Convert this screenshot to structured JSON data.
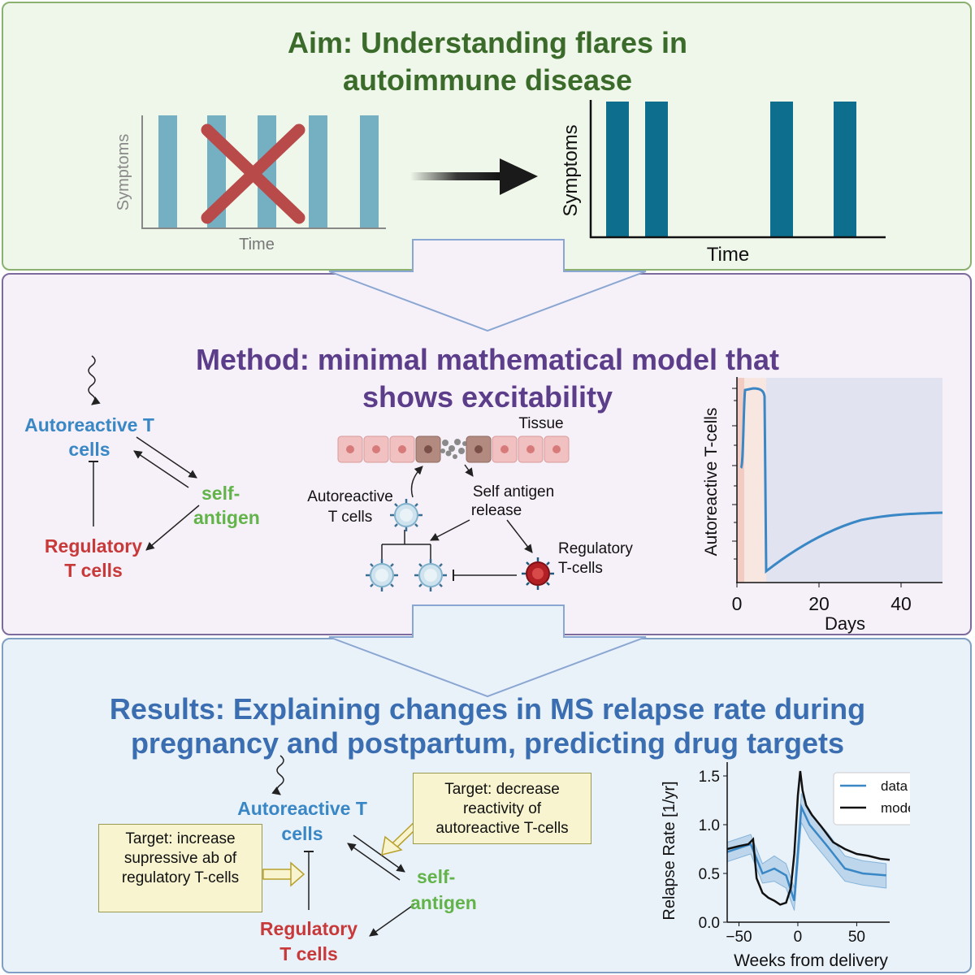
{
  "aim": {
    "title_line1": "Aim: Understanding flares in",
    "title_line2": "autoimmune disease",
    "chart_left": {
      "ylabel": "Symptoms",
      "xlabel": "Time"
    },
    "chart_right": {
      "ylabel": "Symptoms",
      "xlabel": "Time"
    }
  },
  "method": {
    "title_line1": "Method: minimal mathematical model that",
    "title_line2": "shows excitability",
    "network": {
      "autoreactive_line1": "Autoreactive T",
      "autoreactive_line2": "cells",
      "self_antigen_line1": "self-",
      "self_antigen_line2": "antigen",
      "regulatory_line1": "Regulatory",
      "regulatory_line2": "T cells"
    },
    "illustration": {
      "tissue": "Tissue",
      "autoreactive_line1": "Autoreactive",
      "autoreactive_line2": "T cells",
      "self_antigen_line1": "Self antigen",
      "self_antigen_line2": "release",
      "regulatory_line1": "Regulatory",
      "regulatory_line2": "T-cells"
    },
    "plot": {
      "ylabel": "Autoreactive T-cells",
      "xlabel": "Days",
      "xticks": [
        "0",
        "20",
        "40"
      ]
    }
  },
  "results": {
    "title_line1": "Results: Explaining changes in MS relapse rate during",
    "title_line2": "pregnancy and postpartum, predicting drug targets",
    "network": {
      "autoreactive_line1": "Autoreactive T",
      "autoreactive_line2": "cells",
      "self_antigen_line1": "self-",
      "self_antigen_line2": "antigen",
      "regulatory_line1": "Regulatory",
      "regulatory_line2": "T cells"
    },
    "target_left": {
      "line1": "Target: increase",
      "line2": "supressive ab of",
      "line3": "regulatory T-cells"
    },
    "target_right": {
      "line1": "Target: decrease",
      "line2": "reactivity of",
      "line3": "autoreactive T-cells"
    }
  },
  "chart_data": {
    "type": "line",
    "xlabel": "Weeks from delivery",
    "ylabel": "Relapse Rate [1/yr]",
    "xlim": [
      -60,
      78
    ],
    "ylim": [
      0.0,
      1.6
    ],
    "xticks": [
      -50,
      0,
      50
    ],
    "xtick_labels": [
      "−50",
      "0",
      "50"
    ],
    "yticks": [
      0.0,
      0.5,
      1.0,
      1.5
    ],
    "ytick_labels": [
      "0.0",
      "0.5",
      "1.0",
      "1.5"
    ],
    "legend": "top-right",
    "series": [
      {
        "name": "data",
        "color": "#3a87c6",
        "x": [
          -60,
          -40,
          -30,
          -20,
          -10,
          -3,
          3,
          10,
          25,
          40,
          55,
          75
        ],
        "values": [
          0.72,
          0.8,
          0.5,
          0.55,
          0.48,
          0.22,
          1.18,
          1.0,
          0.78,
          0.55,
          0.5,
          0.48
        ],
        "band_low": [
          0.62,
          0.7,
          0.4,
          0.42,
          0.35,
          0.12,
          1.02,
          0.86,
          0.64,
          0.42,
          0.38,
          0.35
        ],
        "band_high": [
          0.82,
          0.9,
          0.6,
          0.68,
          0.6,
          0.35,
          1.32,
          1.12,
          0.92,
          0.68,
          0.63,
          0.6
        ]
      },
      {
        "name": "model",
        "color": "#111111",
        "x": [
          -60,
          -50,
          -42,
          -38,
          -35,
          -30,
          -25,
          -20,
          -15,
          -10,
          -6,
          -3,
          0,
          2,
          4,
          7,
          12,
          20,
          30,
          40,
          50,
          60,
          70,
          78
        ],
        "values": [
          0.75,
          0.78,
          0.8,
          0.85,
          0.45,
          0.3,
          0.25,
          0.22,
          0.18,
          0.2,
          0.35,
          0.7,
          1.3,
          1.55,
          1.35,
          1.2,
          1.1,
          0.98,
          0.82,
          0.75,
          0.7,
          0.68,
          0.65,
          0.64
        ]
      }
    ]
  }
}
